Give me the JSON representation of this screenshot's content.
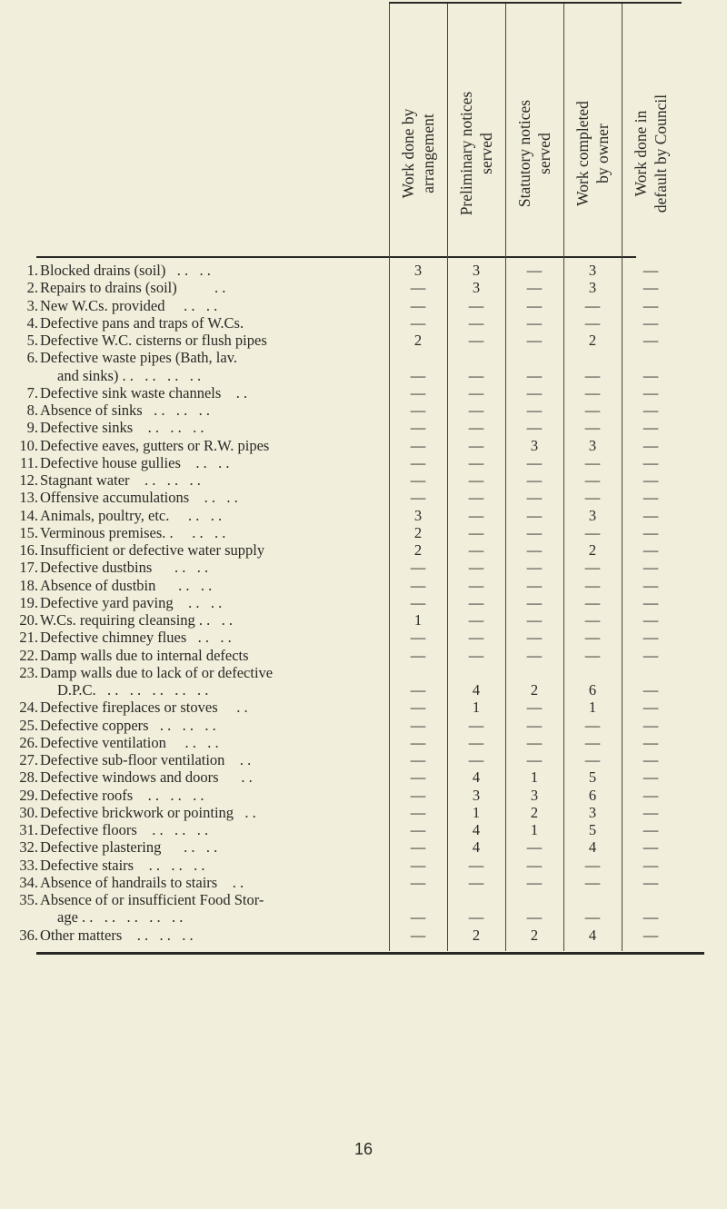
{
  "columns": [
    [
      "Work done by",
      "arrangement"
    ],
    [
      "Preliminary notices",
      "served"
    ],
    [
      "Statutory notices",
      "served"
    ],
    [
      "Work completed",
      "by owner"
    ],
    [
      "Work done in",
      "default by Council"
    ]
  ],
  "rows": [
    {
      "num": "1.",
      "label": [
        "Blocked drains (soil)   . .   . ."
      ],
      "values": [
        "3",
        "3",
        "—",
        "3",
        "—"
      ]
    },
    {
      "num": "2.",
      "label": [
        "Repairs to drains (soil)          . ."
      ],
      "values": [
        "—",
        "3",
        "—",
        "3",
        "—"
      ]
    },
    {
      "num": "3.",
      "label": [
        "New W.Cs. provided     . .   . ."
      ],
      "values": [
        "—",
        "—",
        "—",
        "—",
        "—"
      ]
    },
    {
      "num": "4.",
      "label": [
        "Defective pans and traps of W.Cs."
      ],
      "values": [
        "—",
        "—",
        "—",
        "—",
        "—"
      ]
    },
    {
      "num": "5.",
      "label": [
        "Defective W.C. cisterns or flush pipes"
      ],
      "values": [
        "2",
        "—",
        "—",
        "2",
        "—"
      ]
    },
    {
      "num": "6.",
      "label": [
        "Defective waste pipes (Bath, lav.",
        "and sinks) . .   . .   . .   . ."
      ],
      "values": [
        "—",
        "—",
        "—",
        "—",
        "—"
      ]
    },
    {
      "num": "7.",
      "label": [
        "Defective sink waste channels    . ."
      ],
      "values": [
        "—",
        "—",
        "—",
        "—",
        "—"
      ]
    },
    {
      "num": "8.",
      "label": [
        "Absence of sinks   . .   . .   . ."
      ],
      "values": [
        "—",
        "—",
        "—",
        "—",
        "—"
      ]
    },
    {
      "num": "9.",
      "label": [
        "Defective sinks    . .   . .   . ."
      ],
      "values": [
        "—",
        "—",
        "—",
        "—",
        "—"
      ]
    },
    {
      "num": "10.",
      "label": [
        "Defective eaves, gutters or R.W. pipes"
      ],
      "values": [
        "—",
        "—",
        "3",
        "3",
        "—"
      ]
    },
    {
      "num": "11.",
      "label": [
        "Defective house gullies    . .   . ."
      ],
      "values": [
        "—",
        "—",
        "—",
        "—",
        "—"
      ]
    },
    {
      "num": "12.",
      "label": [
        "Stagnant water    . .   . .   . ."
      ],
      "values": [
        "—",
        "—",
        "—",
        "—",
        "—"
      ]
    },
    {
      "num": "13.",
      "label": [
        "Offensive accumulations    . .   . ."
      ],
      "values": [
        "—",
        "—",
        "—",
        "—",
        "—"
      ]
    },
    {
      "num": "14.",
      "label": [
        "Animals, poultry, etc.     . .   . ."
      ],
      "values": [
        "3",
        "—",
        "—",
        "3",
        "—"
      ]
    },
    {
      "num": "15.",
      "label": [
        "Verminous premises. .     . .   . ."
      ],
      "values": [
        "2",
        "—",
        "—",
        "—",
        "—"
      ]
    },
    {
      "num": "16.",
      "label": [
        "Insufficient or defective water supply"
      ],
      "values": [
        "2",
        "—",
        "—",
        "2",
        "—"
      ]
    },
    {
      "num": "17.",
      "label": [
        "Defective dustbins      . .   . ."
      ],
      "values": [
        "—",
        "—",
        "—",
        "—",
        "—"
      ]
    },
    {
      "num": "18.",
      "label": [
        "Absence of dustbin      . .   . ."
      ],
      "values": [
        "—",
        "—",
        "—",
        "—",
        "—"
      ]
    },
    {
      "num": "19.",
      "label": [
        "Defective yard paving    . .   . ."
      ],
      "values": [
        "—",
        "—",
        "—",
        "—",
        "—"
      ]
    },
    {
      "num": "20.",
      "label": [
        "W.Cs. requiring cleansing . .   . ."
      ],
      "values": [
        "1",
        "—",
        "—",
        "—",
        "—"
      ]
    },
    {
      "num": "21.",
      "label": [
        "Defective chimney flues   . .   . ."
      ],
      "values": [
        "—",
        "—",
        "—",
        "—",
        "—"
      ]
    },
    {
      "num": "22.",
      "label": [
        "Damp walls due to internal defects"
      ],
      "values": [
        "—",
        "—",
        "—",
        "—",
        "—"
      ]
    },
    {
      "num": "23.",
      "label": [
        "Damp walls due to lack of or defective",
        "D.P.C.   . .   . .   . .   . .   . ."
      ],
      "values": [
        "—",
        "4",
        "2",
        "6",
        "—"
      ]
    },
    {
      "num": "24.",
      "label": [
        "Defective fireplaces or stoves     . ."
      ],
      "values": [
        "—",
        "1",
        "—",
        "1",
        "—"
      ]
    },
    {
      "num": "25.",
      "label": [
        "Defective coppers   . .   . .   . ."
      ],
      "values": [
        "—",
        "—",
        "—",
        "—",
        "—"
      ]
    },
    {
      "num": "26.",
      "label": [
        "Defective ventilation     . .   . ."
      ],
      "values": [
        "—",
        "—",
        "—",
        "—",
        "—"
      ]
    },
    {
      "num": "27.",
      "label": [
        "Defective sub-floor ventilation    . ."
      ],
      "values": [
        "—",
        "—",
        "—",
        "—",
        "—"
      ]
    },
    {
      "num": "28.",
      "label": [
        "Defective windows and doors      . ."
      ],
      "values": [
        "—",
        "4",
        "1",
        "5",
        "—"
      ]
    },
    {
      "num": "29.",
      "label": [
        "Defective roofs    . .   . .   . ."
      ],
      "values": [
        "—",
        "3",
        "3",
        "6",
        "—"
      ]
    },
    {
      "num": "30.",
      "label": [
        "Defective brickwork or pointing   . ."
      ],
      "values": [
        "—",
        "1",
        "2",
        "3",
        "—"
      ]
    },
    {
      "num": "31.",
      "label": [
        "Defective floors    . .   . .   . ."
      ],
      "values": [
        "—",
        "4",
        "1",
        "5",
        "—"
      ]
    },
    {
      "num": "32.",
      "label": [
        "Defective plastering      . .   . ."
      ],
      "values": [
        "—",
        "4",
        "—",
        "4",
        "—"
      ]
    },
    {
      "num": "33.",
      "label": [
        "Defective stairs    . .   . .   . ."
      ],
      "values": [
        "—",
        "—",
        "—",
        "—",
        "—"
      ]
    },
    {
      "num": "34.",
      "label": [
        "Absence of handrails to stairs    . ."
      ],
      "values": [
        "—",
        "—",
        "—",
        "—",
        "—"
      ]
    },
    {
      "num": "35.",
      "label": [
        "Absence of or insufficient Food Stor-",
        "age . .   . .   . .   . .   . ."
      ],
      "values": [
        "—",
        "—",
        "—",
        "—",
        "—"
      ]
    },
    {
      "num": "36.",
      "label": [
        "Other matters    . .   . .   . ."
      ],
      "values": [
        "—",
        "2",
        "2",
        "4",
        "—"
      ]
    }
  ],
  "page_number": "16"
}
